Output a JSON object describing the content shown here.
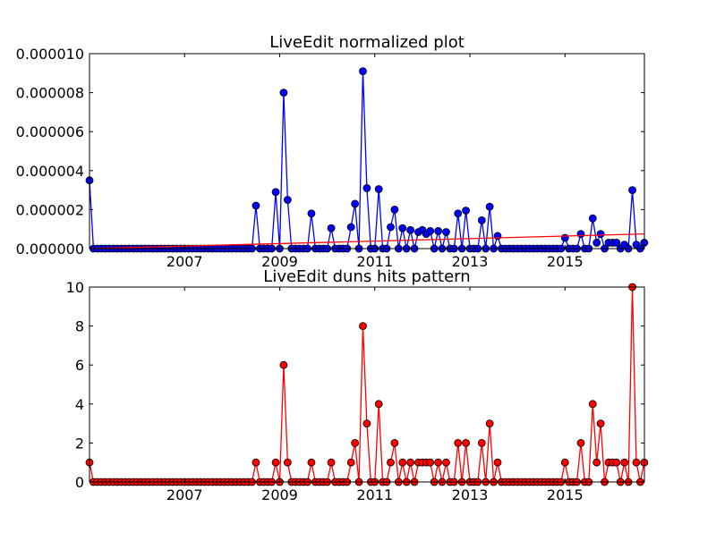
{
  "chart_data": [
    {
      "type": "line",
      "title": "LiveEdit normalized plot",
      "xlabel": "",
      "ylabel": "",
      "xlim": [
        2005.0,
        2016.67
      ],
      "ylim": [
        0,
        1e-05
      ],
      "y_ticks": [
        "0.000000",
        "0.000002",
        "0.000004",
        "0.000006",
        "0.000008",
        "0.000010"
      ],
      "x_ticks": [
        "2007",
        "2009",
        "2011",
        "2013",
        "2015"
      ],
      "x_tick_values": [
        2007,
        2009,
        2011,
        2013,
        2015
      ],
      "grid": false,
      "series": [
        {
          "color": "#0000ff",
          "marker": "circle",
          "points": [
            [
              2005.0,
              3.5e-06
            ],
            [
              2008.5,
              2.2e-06
            ],
            [
              2008.92,
              2.9e-06
            ],
            [
              2009.08,
              8e-06
            ],
            [
              2009.17,
              2.5e-06
            ],
            [
              2009.67,
              1.8e-06
            ],
            [
              2010.08,
              1.05e-06
            ],
            [
              2010.5,
              1.1e-06
            ],
            [
              2010.58,
              2.3e-06
            ],
            [
              2010.75,
              9.1e-06
            ],
            [
              2010.83,
              3.1e-06
            ],
            [
              2011.08,
              3.05e-06
            ],
            [
              2011.33,
              1.1e-06
            ],
            [
              2011.42,
              2e-06
            ],
            [
              2011.58,
              1.05e-06
            ],
            [
              2011.75,
              9.5e-07
            ],
            [
              2011.92,
              8.5e-07
            ],
            [
              2012.0,
              9.5e-07
            ],
            [
              2012.08,
              7.5e-07
            ],
            [
              2012.17,
              9e-07
            ],
            [
              2012.33,
              9e-07
            ],
            [
              2012.5,
              8.5e-07
            ],
            [
              2012.75,
              1.8e-06
            ],
            [
              2012.92,
              1.95e-06
            ],
            [
              2013.25,
              1.45e-06
            ],
            [
              2013.42,
              2.15e-06
            ],
            [
              2013.58,
              6.5e-07
            ],
            [
              2015.0,
              5.5e-07
            ],
            [
              2015.33,
              7.5e-07
            ],
            [
              2015.58,
              1.55e-06
            ],
            [
              2015.67,
              3e-07
            ],
            [
              2015.75,
              7.5e-07
            ],
            [
              2015.92,
              3e-07
            ],
            [
              2016.0,
              3e-07
            ],
            [
              2016.08,
              3e-07
            ],
            [
              2016.25,
              2e-07
            ],
            [
              2016.42,
              3e-06
            ],
            [
              2016.5,
              2e-07
            ],
            [
              2016.67,
              3e-07
            ]
          ]
        },
        {
          "color": "#ff0000",
          "marker": "none",
          "points": [
            [
              2005.0,
              0.0
            ],
            [
              2016.67,
              7.5e-07
            ]
          ]
        }
      ]
    },
    {
      "type": "line",
      "title": "LiveEdit duns hits pattern",
      "xlabel": "",
      "ylabel": "",
      "xlim": [
        2005.0,
        2016.67
      ],
      "ylim": [
        0,
        10
      ],
      "y_ticks": [
        "0",
        "2",
        "4",
        "6",
        "8",
        "10"
      ],
      "x_ticks": [
        "2007",
        "2009",
        "2011",
        "2013",
        "2015"
      ],
      "x_tick_values": [
        2007,
        2009,
        2011,
        2013,
        2015
      ],
      "grid": false,
      "series": [
        {
          "color": "#ff0000",
          "marker": "circle",
          "points": [
            [
              2005.0,
              1
            ],
            [
              2008.5,
              1
            ],
            [
              2008.92,
              1
            ],
            [
              2009.08,
              6
            ],
            [
              2009.17,
              1
            ],
            [
              2009.67,
              1
            ],
            [
              2010.08,
              1
            ],
            [
              2010.5,
              1
            ],
            [
              2010.58,
              2
            ],
            [
              2010.75,
              8
            ],
            [
              2010.83,
              3
            ],
            [
              2011.08,
              4
            ],
            [
              2011.33,
              1
            ],
            [
              2011.42,
              2
            ],
            [
              2011.58,
              1
            ],
            [
              2011.75,
              1
            ],
            [
              2011.92,
              1
            ],
            [
              2012.0,
              1
            ],
            [
              2012.08,
              1
            ],
            [
              2012.17,
              1
            ],
            [
              2012.33,
              1
            ],
            [
              2012.5,
              1
            ],
            [
              2012.75,
              2
            ],
            [
              2012.92,
              2
            ],
            [
              2013.25,
              2
            ],
            [
              2013.42,
              3
            ],
            [
              2013.58,
              1
            ],
            [
              2015.0,
              1
            ],
            [
              2015.33,
              2
            ],
            [
              2015.58,
              4
            ],
            [
              2015.67,
              1
            ],
            [
              2015.75,
              3
            ],
            [
              2015.92,
              1
            ],
            [
              2016.0,
              1
            ],
            [
              2016.08,
              1
            ],
            [
              2016.25,
              1
            ],
            [
              2016.42,
              10
            ],
            [
              2016.5,
              1
            ],
            [
              2016.67,
              1
            ]
          ]
        }
      ]
    }
  ]
}
